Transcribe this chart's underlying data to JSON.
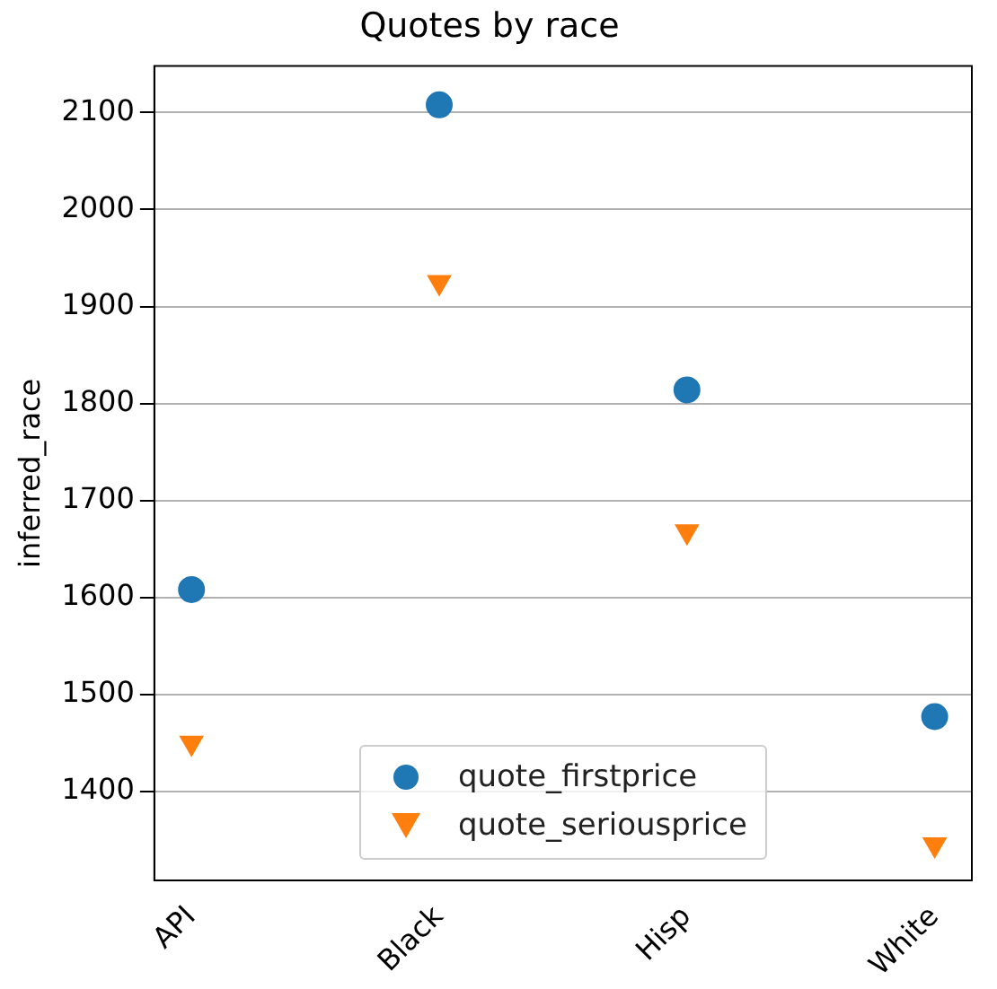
{
  "chart_data": {
    "type": "scatter",
    "title": "Quotes by race",
    "ylabel": "inferred_race",
    "categories": [
      "API",
      "Black",
      "Hisp",
      "White"
    ],
    "series": [
      {
        "name": "quote_firstprice",
        "color": "#1f77b4",
        "marker": "circle",
        "values": [
          1608,
          2108,
          1814,
          1477
        ]
      },
      {
        "name": "quote_seriousprice",
        "color": "#ff7f0e",
        "marker": "triangle",
        "values": [
          1450,
          1925,
          1668,
          1345
        ]
      }
    ],
    "ylim": [
      1308,
      2148
    ],
    "yticks": [
      1400,
      1500,
      1600,
      1700,
      1800,
      1900,
      2000,
      2100
    ],
    "grid": "y",
    "legend": "bottom"
  }
}
